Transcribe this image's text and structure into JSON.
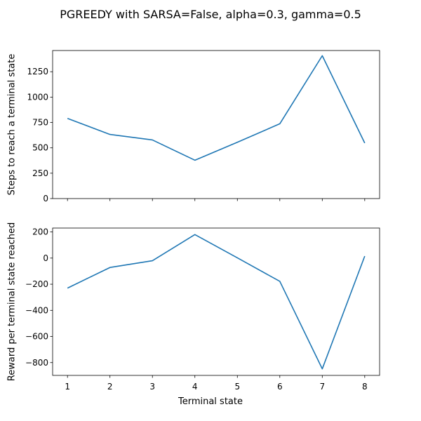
{
  "chart_data": {
    "title": "PGREEDY with SARSA=False, alpha=0.3, gamma=0.5",
    "xlabel": "Terminal state",
    "x": [
      1,
      2,
      3,
      4,
      5,
      6,
      7,
      8
    ],
    "x_ticks": [
      1,
      2,
      3,
      4,
      5,
      6,
      7,
      8
    ],
    "x_tick_labels": [
      "1",
      "2",
      "3",
      "4",
      "5",
      "6",
      "7",
      "8"
    ],
    "xlim": [
      0.65,
      8.35
    ],
    "line_color": "#1f77b4",
    "grid": false,
    "subplots": [
      {
        "type": "line",
        "ylabel": "Steps to reach a terminal state",
        "values": [
          790,
          632,
          578,
          378,
          555,
          737,
          1408,
          547
        ],
        "ylim": [
          0,
          1459
        ],
        "y_ticks": [
          0,
          250,
          500,
          750,
          1000,
          1250
        ],
        "y_tick_labels": [
          "0",
          "250",
          "500",
          "750",
          "1000",
          "1250"
        ]
      },
      {
        "type": "line",
        "ylabel": "Reward per terminal state reached",
        "values": [
          -230,
          -72,
          -20,
          180,
          2,
          -178,
          -848,
          15
        ],
        "ylim": [
          -898,
          230
        ],
        "y_ticks": [
          -800,
          -600,
          -400,
          -200,
          0,
          200
        ],
        "y_tick_labels": [
          "−800",
          "−600",
          "−400",
          "−200",
          "0",
          "200"
        ]
      }
    ]
  }
}
